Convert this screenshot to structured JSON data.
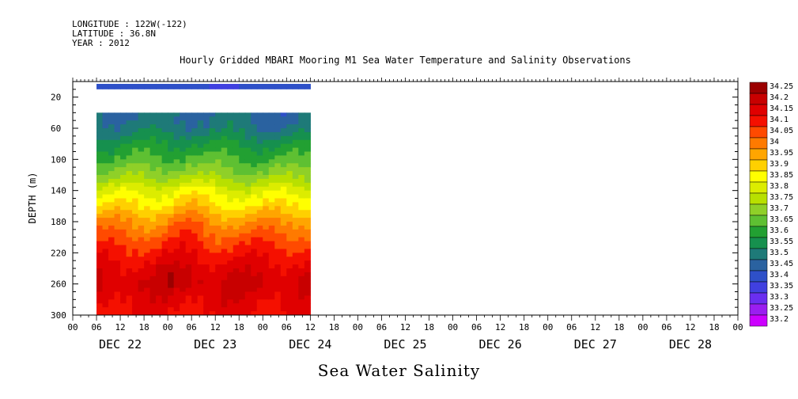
{
  "header": {
    "longitude": "LONGITUDE : 122W(-122)",
    "latitude": "LATITUDE : 36.8N",
    "year": "YEAR : 2012"
  },
  "chart_data": {
    "type": "heatmap",
    "title": "Hourly Gridded MBARI Mooring M1 Sea Water Temperature and Salinity Observations",
    "xlabel": "Sea Water Salinity",
    "ylabel": "DEPTH (m)",
    "x_unit": "hours since DEC 22 00:00",
    "xlim": [
      0,
      168
    ],
    "ylim": [
      300,
      0
    ],
    "y_ticks": [
      20,
      60,
      100,
      140,
      180,
      220,
      260,
      300
    ],
    "x_hour_ticks": [
      "00",
      "06",
      "12",
      "18",
      "00",
      "06",
      "12",
      "18",
      "00",
      "06",
      "12",
      "18",
      "00",
      "06",
      "12",
      "18",
      "00",
      "06",
      "12",
      "18",
      "00",
      "06",
      "12",
      "18",
      "00",
      "06",
      "12",
      "18",
      "00"
    ],
    "day_labels": [
      "DEC 22",
      "DEC 23",
      "DEC 24",
      "DEC 25",
      "DEC 26",
      "DEC 27",
      "DEC 28"
    ],
    "colorbar": {
      "levels": [
        "34.25",
        "34.2",
        "34.15",
        "34.1",
        "34.05",
        "34",
        "33.95",
        "33.9",
        "33.85",
        "33.8",
        "33.75",
        "33.7",
        "33.65",
        "33.6",
        "33.55",
        "33.5",
        "33.45",
        "33.4",
        "33.35",
        "33.3",
        "33.25",
        "33.2"
      ],
      "colors": [
        "#9b0000",
        "#c80000",
        "#e00000",
        "#f51000",
        "#ff4a00",
        "#ff7a00",
        "#ffa500",
        "#ffd000",
        "#ffff00",
        "#dcec00",
        "#b8e000",
        "#8fd028",
        "#5ec032",
        "#22a032",
        "#16904e",
        "#1e7a78",
        "#2a62a0",
        "#2e50c8",
        "#4040e0",
        "#6a2ef0",
        "#9a1ef0",
        "#cc00ff"
      ]
    },
    "data_extent": {
      "start_hour": 6,
      "end_hour": 60
    },
    "depth_profile": {
      "depth": [
        10,
        40,
        60,
        80,
        100,
        120,
        140,
        160,
        180,
        200,
        220,
        240,
        260,
        280,
        300
      ],
      "salinity": [
        33.39,
        33.47,
        33.5,
        33.57,
        33.63,
        33.7,
        33.8,
        33.88,
        33.97,
        34.04,
        34.1,
        34.15,
        34.18,
        34.15,
        34.12
      ]
    }
  }
}
